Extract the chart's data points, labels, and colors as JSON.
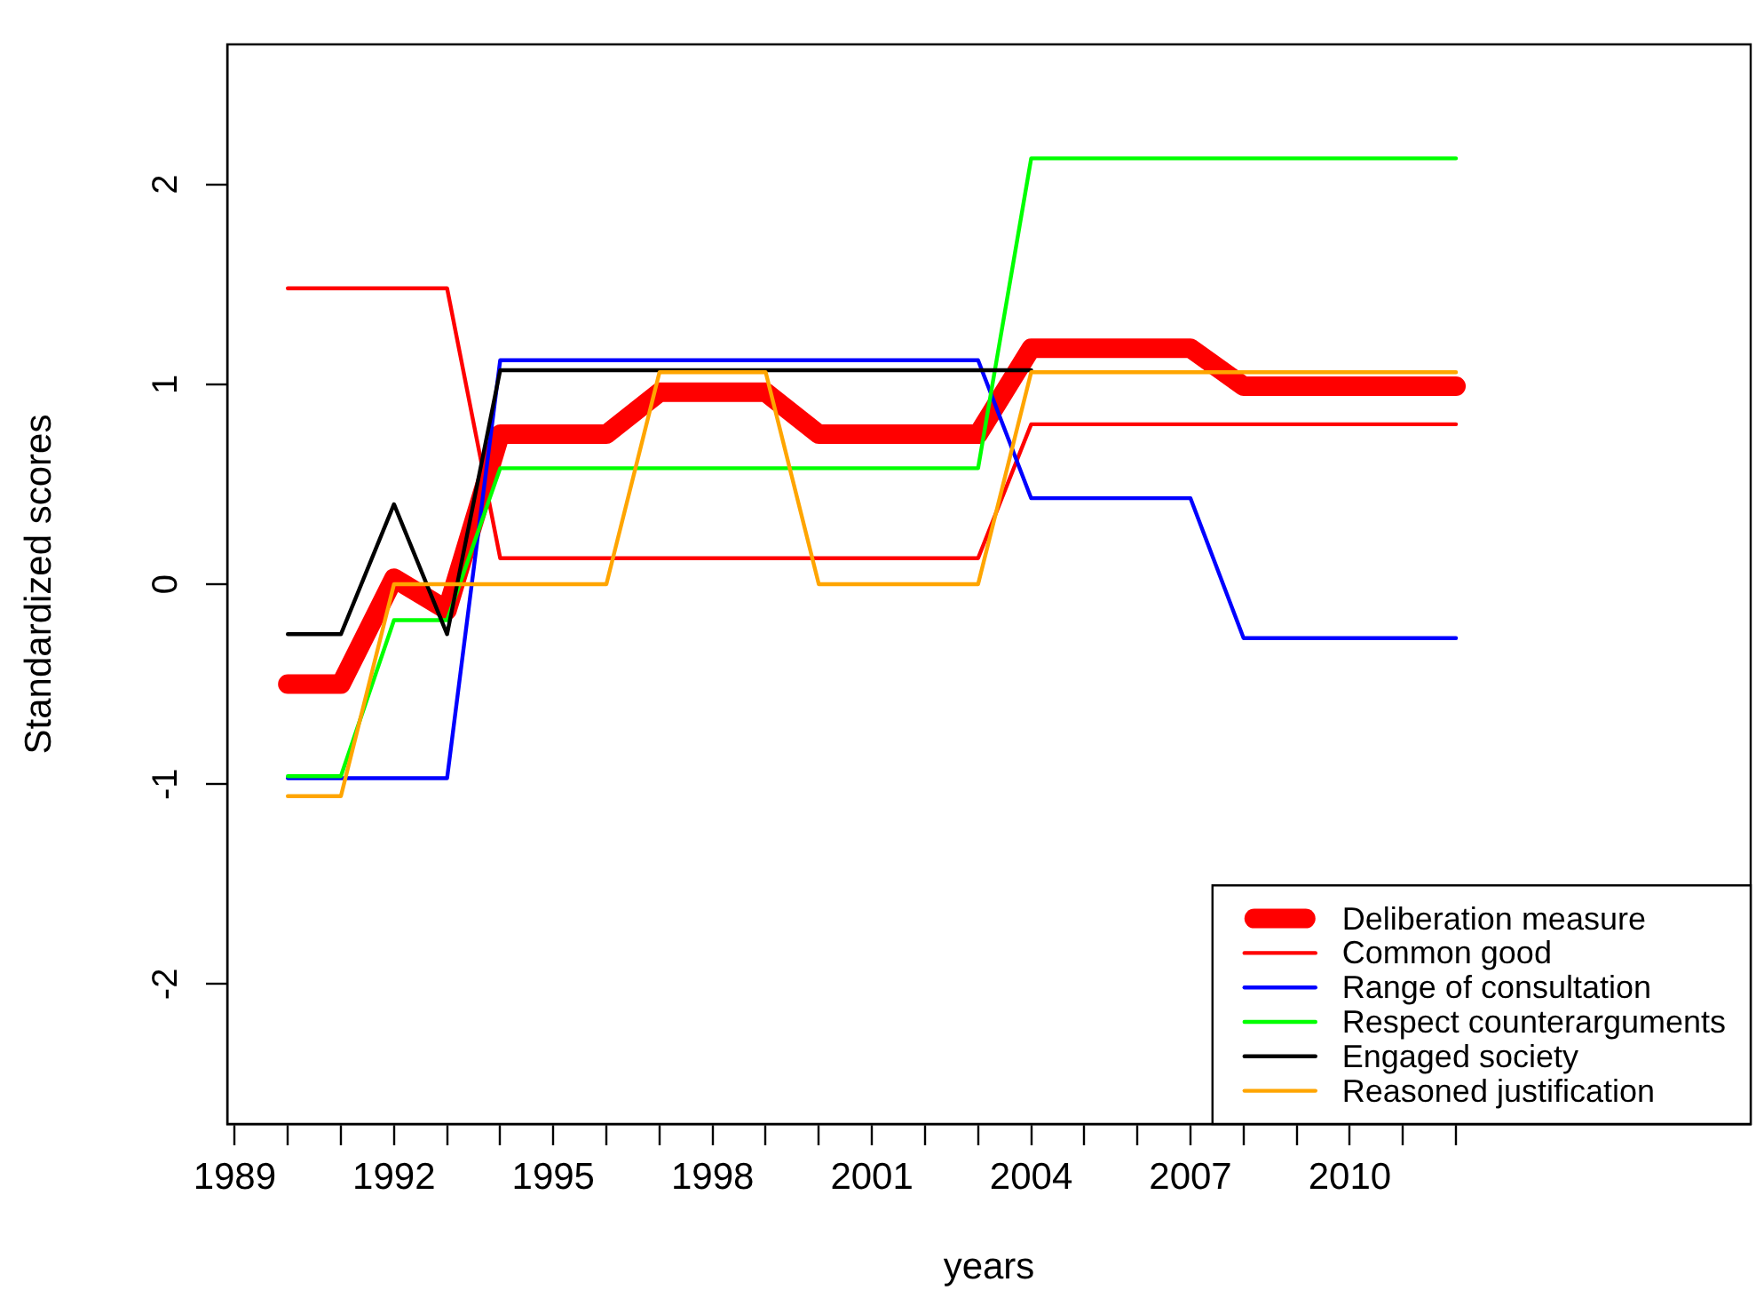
{
  "chart_data": {
    "type": "line",
    "xlabel": "years",
    "ylabel": "Standardized scores",
    "x": [
      1990,
      1991,
      1992,
      1993,
      1994,
      1995,
      1996,
      1997,
      1998,
      1999,
      2000,
      2001,
      2002,
      2003,
      2004,
      2005,
      2006,
      2007,
      2008,
      2009,
      2010,
      2011,
      2012
    ],
    "series": [
      {
        "name": "Deliberation measure",
        "color": "#ff0000",
        "values": [
          -0.5,
          -0.5,
          0.03,
          -0.13,
          0.75,
          0.75,
          0.75,
          0.96,
          0.96,
          0.96,
          0.75,
          0.75,
          0.75,
          0.75,
          1.18,
          1.18,
          1.18,
          1.18,
          0.99,
          0.99,
          0.99,
          0.99,
          0.99
        ]
      },
      {
        "name": "Common good",
        "color": "#ff0000",
        "values": [
          1.48,
          1.48,
          1.48,
          1.48,
          0.13,
          0.13,
          0.13,
          0.13,
          0.13,
          0.13,
          0.13,
          0.13,
          0.13,
          0.13,
          0.8,
          0.8,
          0.8,
          0.8,
          0.8,
          0.8,
          0.8,
          0.8,
          0.8
        ]
      },
      {
        "name": "Range of consultation",
        "color": "#0000ff",
        "values": [
          -0.97,
          -0.97,
          -0.97,
          -0.97,
          1.12,
          1.12,
          1.12,
          1.12,
          1.12,
          1.12,
          1.12,
          1.12,
          1.12,
          1.12,
          0.43,
          0.43,
          0.43,
          0.43,
          -0.27,
          -0.27,
          -0.27,
          -0.27,
          -0.27
        ]
      },
      {
        "name": "Respect counterarguments",
        "color": "#00ff00",
        "values": [
          -0.96,
          -0.96,
          -0.18,
          -0.18,
          0.58,
          0.58,
          0.58,
          0.58,
          0.58,
          0.58,
          0.58,
          0.58,
          0.58,
          0.58,
          2.13,
          2.13,
          2.13,
          2.13,
          2.13,
          2.13,
          2.13,
          2.13,
          2.13
        ]
      },
      {
        "name": "Engaged society",
        "color": "#000000",
        "values": [
          -0.25,
          -0.25,
          0.4,
          -0.25,
          1.07,
          1.07,
          1.07,
          1.07,
          1.07,
          1.07,
          1.07,
          1.07,
          1.07,
          1.07,
          1.07,
          null,
          null,
          null,
          null,
          null,
          null,
          null,
          null
        ]
      },
      {
        "name": "Reasoned justification",
        "color": "#ffa500",
        "values": [
          -1.06,
          -1.06,
          0,
          0,
          0,
          0,
          0,
          1.06,
          1.06,
          1.06,
          0,
          0,
          0,
          0,
          1.06,
          1.06,
          1.06,
          1.06,
          1.06,
          1.06,
          1.06,
          1.06,
          1.06
        ]
      }
    ],
    "xlim": [
      1988.86,
      2017.55
    ],
    "ylim": [
      -2.7,
      2.7
    ],
    "xticks": [
      1989,
      {
        "value": 1990,
        "label": null
      },
      {
        "value": 1991,
        "label": null
      },
      1992,
      {
        "value": 1993,
        "label": null
      },
      {
        "value": 1994,
        "label": null
      },
      1995,
      {
        "value": 1996,
        "label": null
      },
      {
        "value": 1997,
        "label": null
      },
      1998,
      {
        "value": 1999,
        "label": null
      },
      {
        "value": 2000,
        "label": null
      },
      2001,
      {
        "value": 2002,
        "label": null
      },
      {
        "value": 2003,
        "label": null
      },
      2004,
      {
        "value": 2005,
        "label": null
      },
      {
        "value": 2006,
        "label": null
      },
      2007,
      {
        "value": 2008,
        "label": null
      },
      {
        "value": 2009,
        "label": null
      },
      2010,
      {
        "value": 2011,
        "label": null
      },
      {
        "value": 2012,
        "label": null
      }
    ],
    "yticks": [
      -2,
      -1,
      0,
      1,
      2
    ],
    "grid": false,
    "legend": "bottom right",
    "marker": "none",
    "line_style": "solid"
  }
}
